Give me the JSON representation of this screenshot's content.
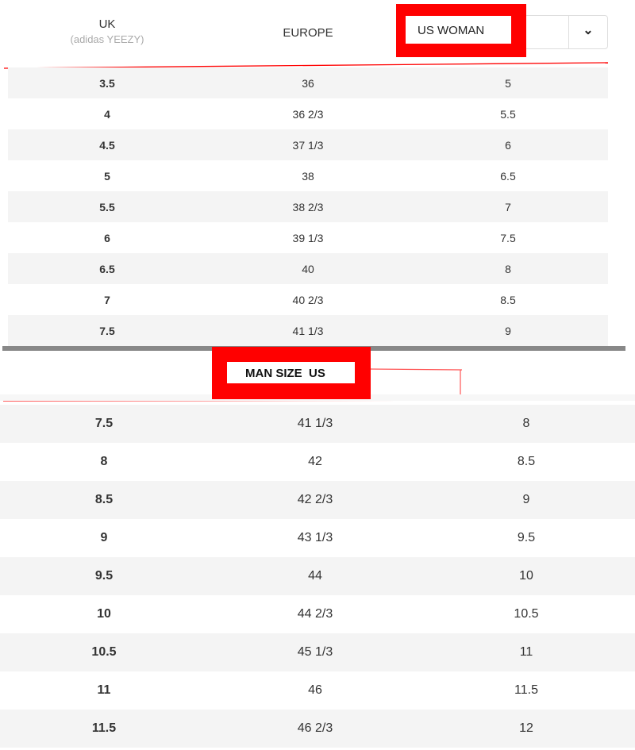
{
  "header": {
    "uk": "UK",
    "uk_sub": "(adidas YEEZY)",
    "europe": "EUROPE",
    "us_select": "US WOMAN"
  },
  "woman_rows": [
    [
      "3.5",
      "36",
      "5"
    ],
    [
      "4",
      "36 2/3",
      "5.5"
    ],
    [
      "4.5",
      "37 1/3",
      "6"
    ],
    [
      "5",
      "38",
      "6.5"
    ],
    [
      "5.5",
      "38 2/3",
      "7"
    ],
    [
      "6",
      "39 1/3",
      "7.5"
    ],
    [
      "6.5",
      "40",
      "8"
    ],
    [
      "7",
      "40 2/3",
      "8.5"
    ],
    [
      "7.5",
      "41 1/3",
      "9"
    ]
  ],
  "man_label": "MAN SIZE  US",
  "man_rows": [
    [
      "7.5",
      "41 1/3",
      "8"
    ],
    [
      "8",
      "42",
      "8.5"
    ],
    [
      "8.5",
      "42 2/3",
      "9"
    ],
    [
      "9",
      "43 1/3",
      "9.5"
    ],
    [
      "9.5",
      "44",
      "10"
    ],
    [
      "10",
      "44 2/3",
      "10.5"
    ],
    [
      "10.5",
      "45 1/3",
      "11"
    ],
    [
      "11",
      "46",
      "11.5"
    ],
    [
      "11.5",
      "46 2/3",
      "12"
    ]
  ],
  "colors": {
    "annotation": "#ff0000",
    "divider": "#888888",
    "row_alt": "#f4f4f4"
  }
}
